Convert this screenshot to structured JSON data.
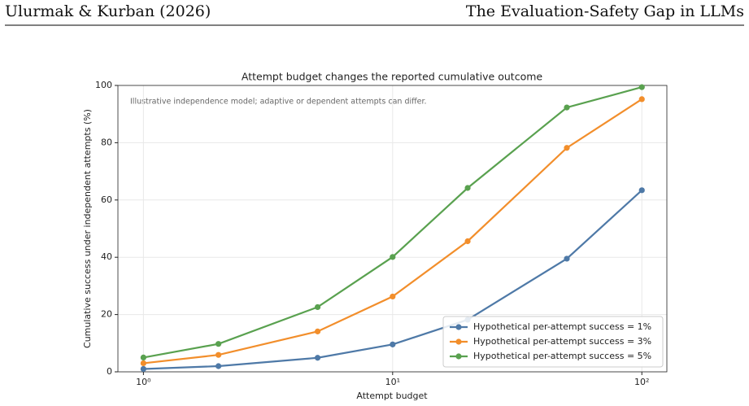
{
  "header": {
    "left": "Ulurmak & Kurban (2026)",
    "right": "The Evaluation-Safety Gap in LLMs"
  },
  "chart_data": {
    "type": "line",
    "title": "Attempt budget changes the reported cumulative outcome",
    "annotation": "Illustrative independence model; adaptive or dependent attempts can differ.",
    "xlabel": "Attempt budget",
    "ylabel": "Cumulative success under independent attempts (%)",
    "x": [
      1,
      2,
      5,
      10,
      20,
      50,
      100
    ],
    "series": [
      {
        "name": "Hypothetical per-attempt success = 1%",
        "color": "#4e79a7",
        "values": [
          1,
          1.99,
          4.9,
          9.56,
          18.2,
          39.5,
          63.4
        ]
      },
      {
        "name": "Hypothetical per-attempt success = 3%",
        "color": "#f28e2b",
        "values": [
          3,
          5.91,
          14.1,
          26.3,
          45.6,
          78.2,
          95.2
        ]
      },
      {
        "name": "Hypothetical per-attempt success = 5%",
        "color": "#59a14f",
        "values": [
          5,
          9.75,
          22.6,
          40.1,
          64.2,
          92.3,
          99.4
        ]
      }
    ],
    "xlim": [
      0.79,
      126
    ],
    "ylim": [
      0,
      100
    ],
    "xticks": [
      {
        "value": 1,
        "label": "10⁰"
      },
      {
        "value": 10,
        "label": "10¹"
      },
      {
        "value": 100,
        "label": "10²"
      }
    ],
    "yticks": [
      0,
      20,
      40,
      60,
      80,
      100
    ],
    "log_x": true,
    "grid": true,
    "legend": "lower right"
  }
}
